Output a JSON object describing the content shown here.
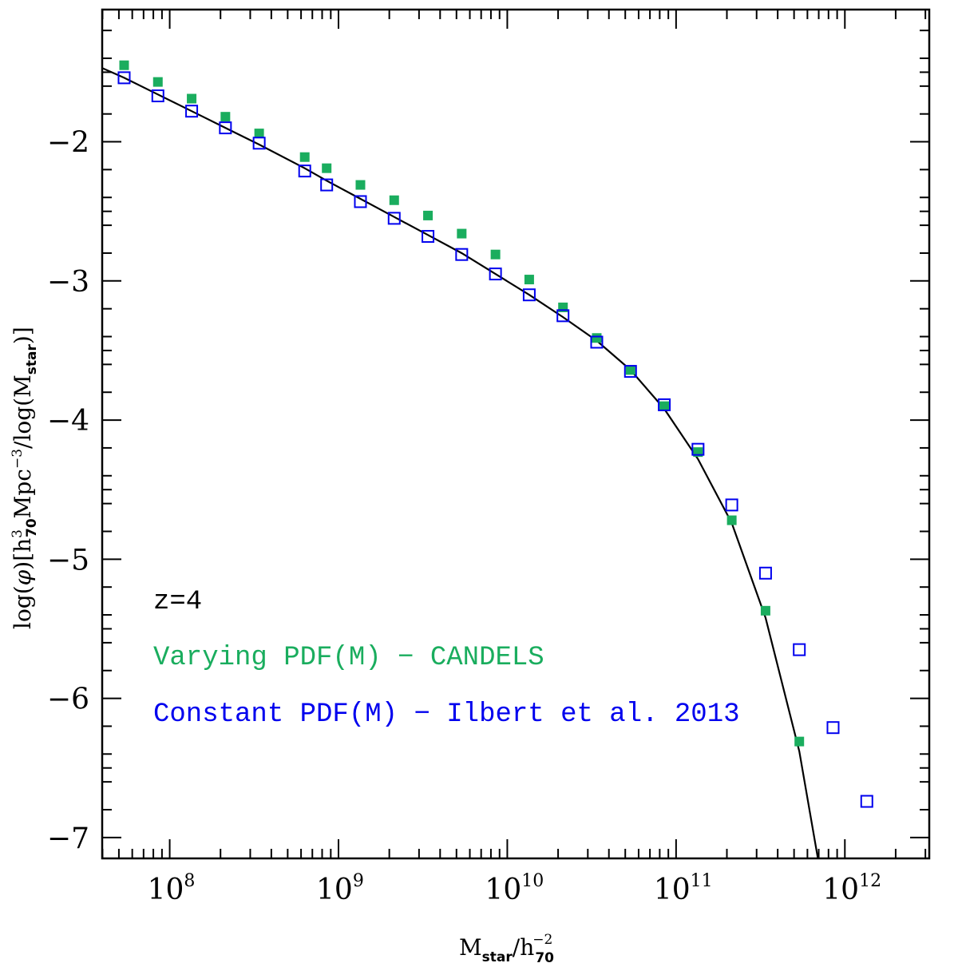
{
  "chart_data": {
    "type": "scatter",
    "title": "",
    "xlabel": {
      "base": "M",
      "sub1": "star",
      "slash": "/h",
      "sub2": "70",
      "sup2": "−2"
    },
    "ylabel": {
      "p1": "log(",
      "phi": "φ",
      "p2": ")[h",
      "sup1": "3",
      "sub1": "70",
      "p3": "Mpc",
      "sup2": "−3",
      "p4": "/log(M",
      "sub2": "star",
      "p5": ")]"
    },
    "xscale": "log",
    "xlim_log10": [
      7.6,
      12.5
    ],
    "ylim": [
      -7.15,
      -1.05
    ],
    "x_ticks": [
      {
        "base": "10",
        "exp": "8",
        "value": 8
      },
      {
        "base": "10",
        "exp": "9",
        "value": 9
      },
      {
        "base": "10",
        "exp": "10",
        "value": 10
      },
      {
        "base": "10",
        "exp": "11",
        "value": 11
      },
      {
        "base": "10",
        "exp": "12",
        "value": 12
      }
    ],
    "y_ticks": [
      {
        "label": "−2",
        "value": -2
      },
      {
        "label": "−3",
        "value": -3
      },
      {
        "label": "−4",
        "value": -4
      },
      {
        "label": "−5",
        "value": -5
      },
      {
        "label": "−6",
        "value": -6
      },
      {
        "label": "−7",
        "value": -7
      }
    ],
    "annotations": [
      {
        "text": "z=4",
        "color": "#000000"
      },
      {
        "text": "Varying PDF(M) − CANDELS",
        "color": "#1aad5e"
      },
      {
        "text": "Constant PDF(M) − Ilbert et al. 2013",
        "color": "#0000ee"
      }
    ],
    "series": [
      {
        "name": "Varying PDF(M) − CANDELS",
        "marker": "filled-square",
        "color": "#1aad5e",
        "log_x": [
          7.73,
          7.93,
          8.13,
          8.33,
          8.53,
          8.8,
          8.93,
          9.13,
          9.33,
          9.53,
          9.73,
          9.93,
          10.13,
          10.33,
          10.53,
          10.73,
          10.93,
          11.13,
          11.33,
          11.53,
          11.73
        ],
        "y": [
          -1.45,
          -1.57,
          -1.69,
          -1.82,
          -1.94,
          -2.11,
          -2.19,
          -2.31,
          -2.42,
          -2.53,
          -2.66,
          -2.81,
          -2.99,
          -3.19,
          -3.41,
          -3.64,
          -3.9,
          -4.23,
          -4.72,
          -5.37,
          -6.31
        ]
      },
      {
        "name": "Constant PDF(M) − Ilbert et al. 2013",
        "marker": "open-square",
        "color": "#0000ee",
        "log_x": [
          7.73,
          7.93,
          8.13,
          8.33,
          8.53,
          8.8,
          8.93,
          9.13,
          9.33,
          9.53,
          9.73,
          9.93,
          10.13,
          10.33,
          10.53,
          10.73,
          10.93,
          11.13,
          11.33,
          11.53,
          11.73,
          11.93,
          12.13
        ],
        "y": [
          -1.54,
          -1.67,
          -1.78,
          -1.9,
          -2.01,
          -2.21,
          -2.31,
          -2.43,
          -2.55,
          -2.68,
          -2.81,
          -2.95,
          -3.1,
          -3.25,
          -3.44,
          -3.65,
          -3.89,
          -4.21,
          -4.61,
          -5.1,
          -5.65,
          -6.21,
          -6.74
        ]
      },
      {
        "name": "fit",
        "marker": "line",
        "color": "#000000",
        "log_x": [
          7.6,
          7.73,
          7.93,
          8.13,
          8.33,
          8.53,
          8.8,
          8.93,
          9.13,
          9.33,
          9.53,
          9.73,
          9.93,
          10.13,
          10.33,
          10.53,
          10.73,
          10.93,
          11.13,
          11.33,
          11.53,
          11.73,
          11.84
        ],
        "y": [
          -1.47,
          -1.54,
          -1.66,
          -1.78,
          -1.9,
          -2.02,
          -2.19,
          -2.28,
          -2.41,
          -2.54,
          -2.67,
          -2.8,
          -2.95,
          -3.1,
          -3.26,
          -3.43,
          -3.64,
          -3.92,
          -4.28,
          -4.74,
          -5.42,
          -6.38,
          -7.15
        ]
      }
    ]
  }
}
